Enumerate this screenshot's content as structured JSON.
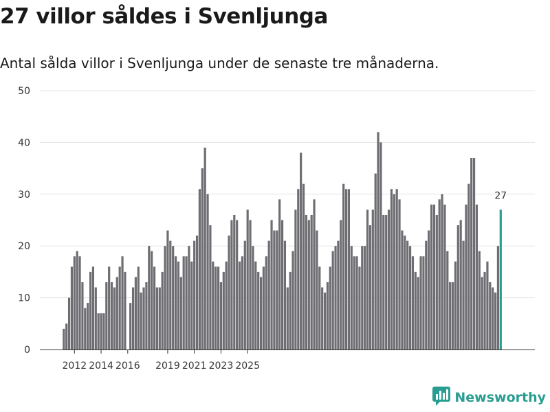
{
  "header": {
    "title": "27 villor såldes i Svenljunga",
    "subtitle": "Antal sålda villor i Svenljunga under de senaste tre månaderna."
  },
  "brand": {
    "name": "Newsworthy",
    "icon": "newsworthy-logo-icon",
    "color": "#2a9d92"
  },
  "colors": {
    "bar": "#6e6d72",
    "highlight": "#2a9d92",
    "grid": "#e3e3e3",
    "axis": "#333333"
  },
  "chart_data": {
    "type": "bar",
    "title": "27 villor såldes i Svenljunga",
    "subtitle": "Antal sålda villor i Svenljunga under de senaste tre månaderna.",
    "xlabel": "",
    "ylabel": "",
    "ylim": [
      0,
      50
    ],
    "yticks": [
      0,
      10,
      20,
      30,
      40,
      50
    ],
    "grid": true,
    "x_start_index": 6,
    "x_index_range": [
      0,
      179
    ],
    "xtick_labels": [
      {
        "index": 10,
        "label": "2012"
      },
      {
        "index": 20,
        "label": "2014"
      },
      {
        "index": 30,
        "label": "2016"
      },
      {
        "index": 45,
        "label": "2019"
      },
      {
        "index": 55,
        "label": "2021"
      },
      {
        "index": 65,
        "label": "2023"
      },
      {
        "index": 75,
        "label": "2025"
      }
    ],
    "highlight_last": true,
    "last_value_label": "27",
    "values": [
      4,
      5,
      10,
      16,
      18,
      19,
      18,
      13,
      8,
      9,
      15,
      16,
      12,
      7,
      7,
      7,
      13,
      16,
      13,
      12,
      14,
      16,
      18,
      15,
      null,
      9,
      12,
      14,
      16,
      11,
      12,
      13,
      20,
      19,
      16,
      12,
      12,
      15,
      20,
      23,
      21,
      20,
      18,
      17,
      14,
      18,
      18,
      20,
      17,
      21,
      22,
      31,
      35,
      39,
      30,
      24,
      17,
      16,
      16,
      13,
      15,
      17,
      22,
      25,
      26,
      25,
      17,
      18,
      21,
      27,
      25,
      20,
      17,
      15,
      14,
      16,
      18,
      21,
      25,
      23,
      23,
      29,
      25,
      21,
      12,
      15,
      19,
      27,
      31,
      38,
      32,
      26,
      25,
      26,
      29,
      23,
      16,
      12,
      11,
      13,
      16,
      19,
      20,
      21,
      25,
      32,
      31,
      31,
      20,
      18,
      18,
      16,
      20,
      20,
      27,
      24,
      27,
      34,
      42,
      40,
      26,
      26,
      27,
      31,
      30,
      31,
      29,
      23,
      22,
      21,
      20,
      18,
      15,
      14,
      18,
      18,
      21,
      23,
      28,
      28,
      26,
      29,
      30,
      28,
      19,
      13,
      13,
      17,
      24,
      25,
      21,
      28,
      32,
      37,
      37,
      28,
      19,
      14,
      15,
      17,
      13,
      12,
      11,
      20,
      27
    ]
  }
}
